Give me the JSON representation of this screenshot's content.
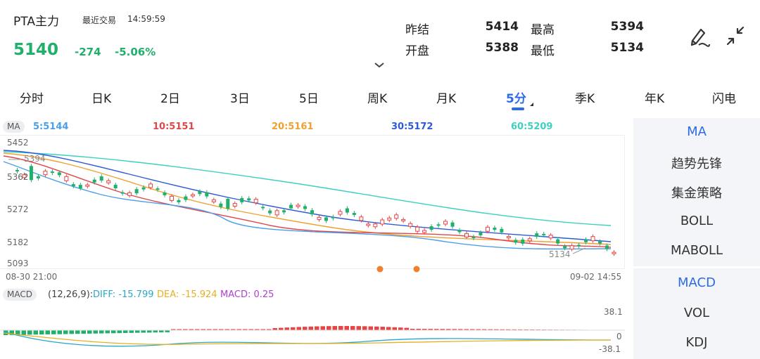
{
  "header": {
    "title": "PTA主力",
    "last_trade_label": "最近交易",
    "last_trade_time": "14:59:59",
    "price": "5140",
    "change": "-274",
    "change_pct": "-5.06%",
    "stats": [
      {
        "label": "昨结",
        "value": "5414"
      },
      {
        "label": "最高",
        "value": "5394"
      },
      {
        "label": "开盘",
        "value": "5388"
      },
      {
        "label": "最低",
        "value": "5134"
      }
    ],
    "icons": [
      "draw-pen-icon",
      "collapse-arrows-icon",
      "chevron-down-icon"
    ]
  },
  "tabs": [
    {
      "label": "分时"
    },
    {
      "label": "日K"
    },
    {
      "label": "2日"
    },
    {
      "label": "3日"
    },
    {
      "label": "5日"
    },
    {
      "label": "周K"
    },
    {
      "label": "月K"
    },
    {
      "label": "5分",
      "active": true
    },
    {
      "label": "季K"
    },
    {
      "label": "年K"
    },
    {
      "label": "闪电"
    }
  ],
  "main_chart": {
    "indicator": "MA",
    "ma_values": [
      {
        "label": "5:5144",
        "color": "#4a9eea"
      },
      {
        "label": "10:5151",
        "color": "#e0454a"
      },
      {
        "label": "20:5161",
        "color": "#f0a030"
      },
      {
        "label": "30:5172",
        "color": "#2d5bd6"
      },
      {
        "label": "60:5209",
        "color": "#3dd0c0"
      }
    ],
    "y_labels": [
      "5452",
      "5362",
      "5272",
      "5182",
      "5093"
    ],
    "max_marker": "5394",
    "min_marker": "5134",
    "x_start": "08-30 21:00",
    "x_end": "09-02 14:55"
  },
  "macd": {
    "badge": "MACD",
    "params": "(12,26,9):",
    "diff": "DIFF: -15.799",
    "dea": "DEA: -15.924",
    "macd": "MACD: 0.25",
    "y_top": "38.1",
    "y_mid": "0",
    "y_bottom": "-38.1"
  },
  "side_menu": {
    "main_indicators": [
      "MA",
      "趋势先锋",
      "集金策略",
      "BOLL",
      "MABOLL"
    ],
    "sub_indicators": [
      "MACD",
      "VOL",
      "KDJ"
    ]
  },
  "colors": {
    "up": "#e64545",
    "down": "#21b06c",
    "accent": "#2d6be6",
    "ma5": "#4a9eea",
    "ma10": "#e0454a",
    "ma20": "#f0a030",
    "ma30": "#2d5bd6",
    "ma60": "#3dd0c0",
    "macd_diff": "#2aa8c8",
    "macd_dea": "#e8b020",
    "macd_macd": "#b040d0",
    "marker": "#f08030"
  }
}
